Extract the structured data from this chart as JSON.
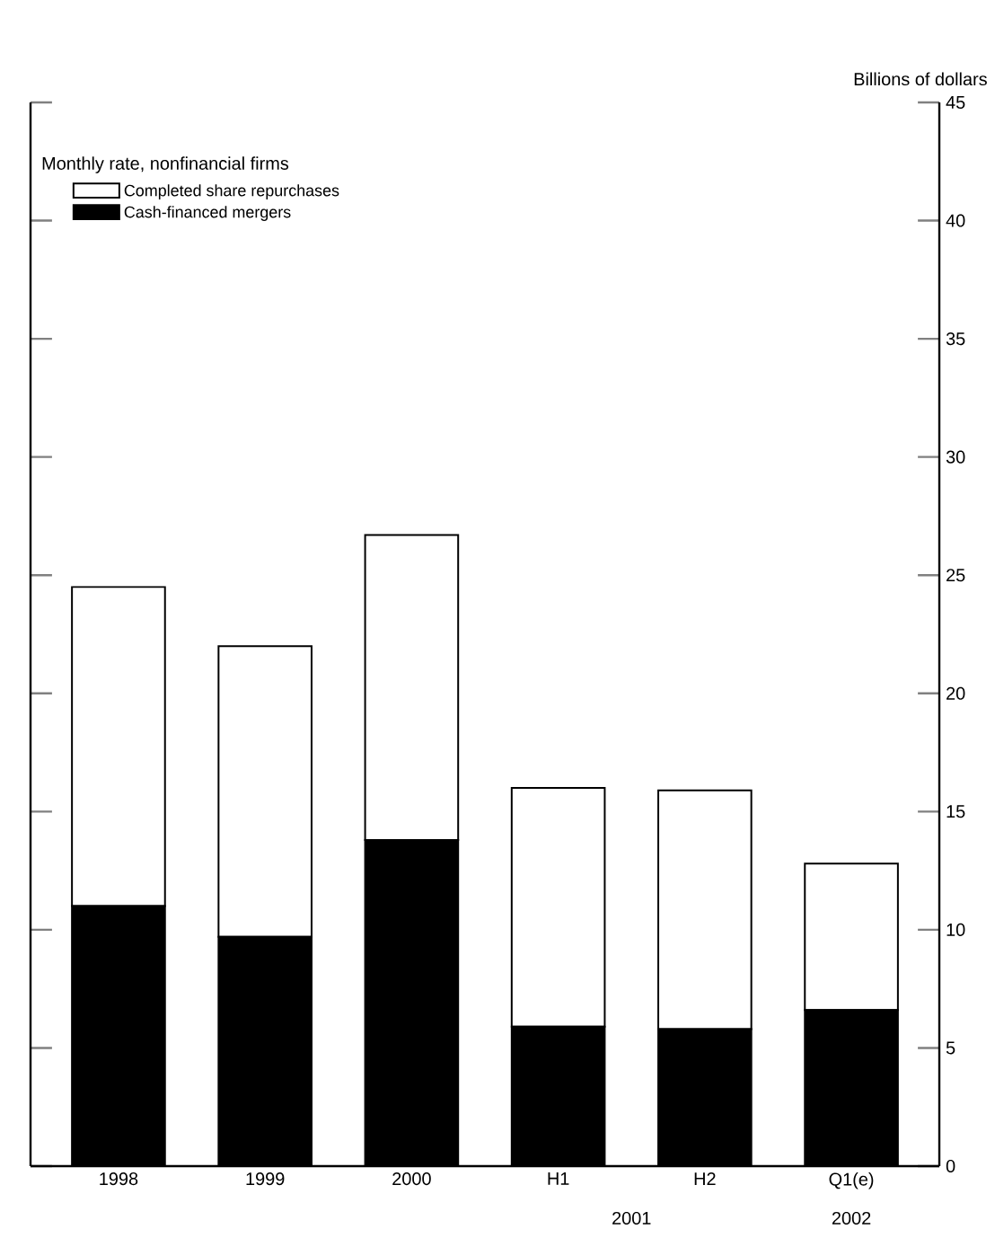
{
  "chart_data": {
    "type": "bar",
    "stacked": true,
    "subtitle": "Monthly rate, nonfinancial firms",
    "ylabel": "Billions of dollars",
    "categories": [
      "1998",
      "1999",
      "2000",
      "H1",
      "H2",
      "Q1(e)"
    ],
    "series": [
      {
        "name": "Cash-financed mergers",
        "color": "#000000",
        "values": [
          11.0,
          9.7,
          13.8,
          5.9,
          5.8,
          6.6
        ]
      },
      {
        "name": "Completed share repurchases",
        "color": "#ffffff",
        "values": [
          13.5,
          12.3,
          12.9,
          10.1,
          10.1,
          6.2
        ]
      }
    ],
    "ylim": [
      0,
      45
    ],
    "yticks": [
      0,
      5,
      10,
      15,
      20,
      25,
      30,
      35,
      40,
      45
    ],
    "legend": "top left",
    "grid": false,
    "annotations": [
      "2001",
      "2002"
    ]
  }
}
